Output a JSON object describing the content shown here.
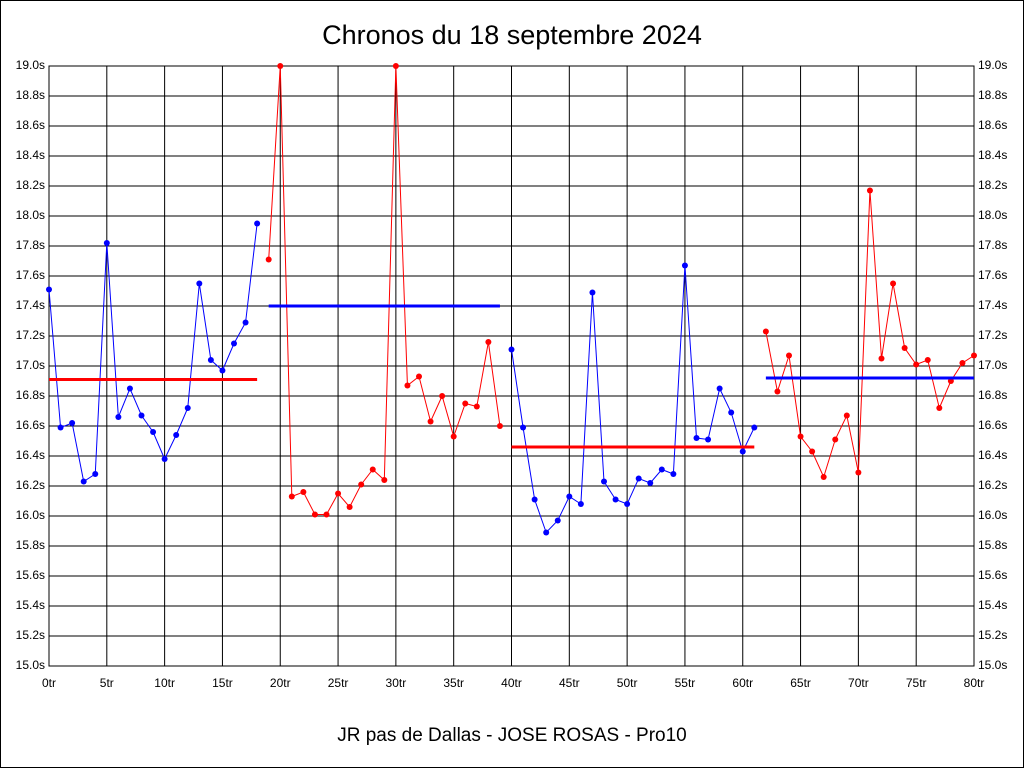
{
  "chart_data": {
    "type": "line",
    "title": "Chronos du 18 septembre 2024",
    "xlabel": "JR pas de Dallas - JOSE ROSAS - Pro10",
    "xlim": [
      0,
      80
    ],
    "xticks": [
      {
        "value": 0,
        "label": "0tr"
      },
      {
        "value": 5,
        "label": "5tr"
      },
      {
        "value": 10,
        "label": "10tr"
      },
      {
        "value": 15,
        "label": "15tr"
      },
      {
        "value": 20,
        "label": "20tr"
      },
      {
        "value": 25,
        "label": "25tr"
      },
      {
        "value": 30,
        "label": "30tr"
      },
      {
        "value": 35,
        "label": "35tr"
      },
      {
        "value": 40,
        "label": "40tr"
      },
      {
        "value": 45,
        "label": "45tr"
      },
      {
        "value": 50,
        "label": "50tr"
      },
      {
        "value": 55,
        "label": "55tr"
      },
      {
        "value": 60,
        "label": "60tr"
      },
      {
        "value": 65,
        "label": "65tr"
      },
      {
        "value": 70,
        "label": "70tr"
      },
      {
        "value": 75,
        "label": "75tr"
      },
      {
        "value": 80,
        "label": "80tr"
      }
    ],
    "ylim": [
      15.0,
      19.0
    ],
    "yticks": [
      {
        "value": 15.0,
        "label": "15.0s"
      },
      {
        "value": 15.2,
        "label": "15.2s"
      },
      {
        "value": 15.4,
        "label": "15.4s"
      },
      {
        "value": 15.6,
        "label": "15.6s"
      },
      {
        "value": 15.8,
        "label": "15.8s"
      },
      {
        "value": 16.0,
        "label": "16.0s"
      },
      {
        "value": 16.2,
        "label": "16.2s"
      },
      {
        "value": 16.4,
        "label": "16.4s"
      },
      {
        "value": 16.6,
        "label": "16.6s"
      },
      {
        "value": 16.8,
        "label": "16.8s"
      },
      {
        "value": 17.0,
        "label": "17.0s"
      },
      {
        "value": 17.2,
        "label": "17.2s"
      },
      {
        "value": 17.4,
        "label": "17.4s"
      },
      {
        "value": 17.6,
        "label": "17.6s"
      },
      {
        "value": 17.8,
        "label": "17.8s"
      },
      {
        "value": 18.0,
        "label": "18.0s"
      },
      {
        "value": 18.2,
        "label": "18.2s"
      },
      {
        "value": 18.4,
        "label": "18.4s"
      },
      {
        "value": 18.6,
        "label": "18.6s"
      },
      {
        "value": 18.8,
        "label": "18.8s"
      },
      {
        "value": 19.0,
        "label": "19.0s"
      }
    ],
    "grid": true,
    "series": [
      {
        "color": "#0000ff",
        "x": [
          0,
          1,
          2,
          3,
          4,
          5,
          6,
          7,
          8,
          9,
          10,
          11,
          12,
          13,
          14,
          15,
          16,
          17,
          18
        ],
        "values": [
          17.51,
          16.59,
          16.62,
          16.23,
          16.28,
          17.82,
          16.66,
          16.85,
          16.67,
          16.56,
          16.38,
          16.54,
          16.72,
          17.55,
          17.04,
          16.97,
          17.15,
          17.29,
          17.95
        ]
      },
      {
        "color": "#ff0000",
        "x": [
          19,
          20,
          21,
          22,
          23,
          24,
          25,
          26,
          27,
          28,
          29,
          30,
          31,
          32,
          33,
          34,
          35,
          36,
          37,
          38,
          39
        ],
        "values": [
          17.71,
          19.0,
          16.13,
          16.16,
          16.01,
          16.01,
          16.15,
          16.06,
          16.21,
          16.31,
          16.24,
          19.0,
          16.87,
          16.93,
          16.63,
          16.8,
          16.53,
          16.75,
          16.73,
          17.16,
          16.6
        ]
      },
      {
        "color": "#0000ff",
        "x": [
          40,
          41,
          42,
          43,
          44,
          45,
          46,
          47,
          48,
          49,
          50,
          51,
          52,
          53,
          54,
          55,
          56,
          57,
          58,
          59,
          60,
          61
        ],
        "values": [
          17.11,
          16.59,
          16.11,
          15.89,
          15.97,
          16.13,
          16.08,
          17.49,
          16.23,
          16.11,
          16.08,
          16.25,
          16.22,
          16.31,
          16.28,
          17.67,
          16.52,
          16.51,
          16.85,
          16.69,
          16.43,
          16.59
        ]
      },
      {
        "color": "#ff0000",
        "x": [
          62,
          63,
          64,
          65,
          66,
          67,
          68,
          69,
          70,
          71,
          72,
          73,
          74,
          75,
          76,
          77,
          78,
          79,
          80
        ],
        "values": [
          17.23,
          16.83,
          17.07,
          16.53,
          16.43,
          16.26,
          16.51,
          16.67,
          16.29,
          18.17,
          17.05,
          17.55,
          17.12,
          17.01,
          17.04,
          16.72,
          16.9,
          17.02,
          17.07
        ]
      }
    ],
    "averages": [
      {
        "color": "#ff0000",
        "x": [
          0,
          18
        ],
        "value": 16.91
      },
      {
        "color": "#0000ff",
        "x": [
          19,
          39
        ],
        "value": 17.4
      },
      {
        "color": "#ff0000",
        "x": [
          40,
          61
        ],
        "value": 16.46
      },
      {
        "color": "#0000ff",
        "x": [
          62,
          80
        ],
        "value": 16.92
      }
    ]
  }
}
